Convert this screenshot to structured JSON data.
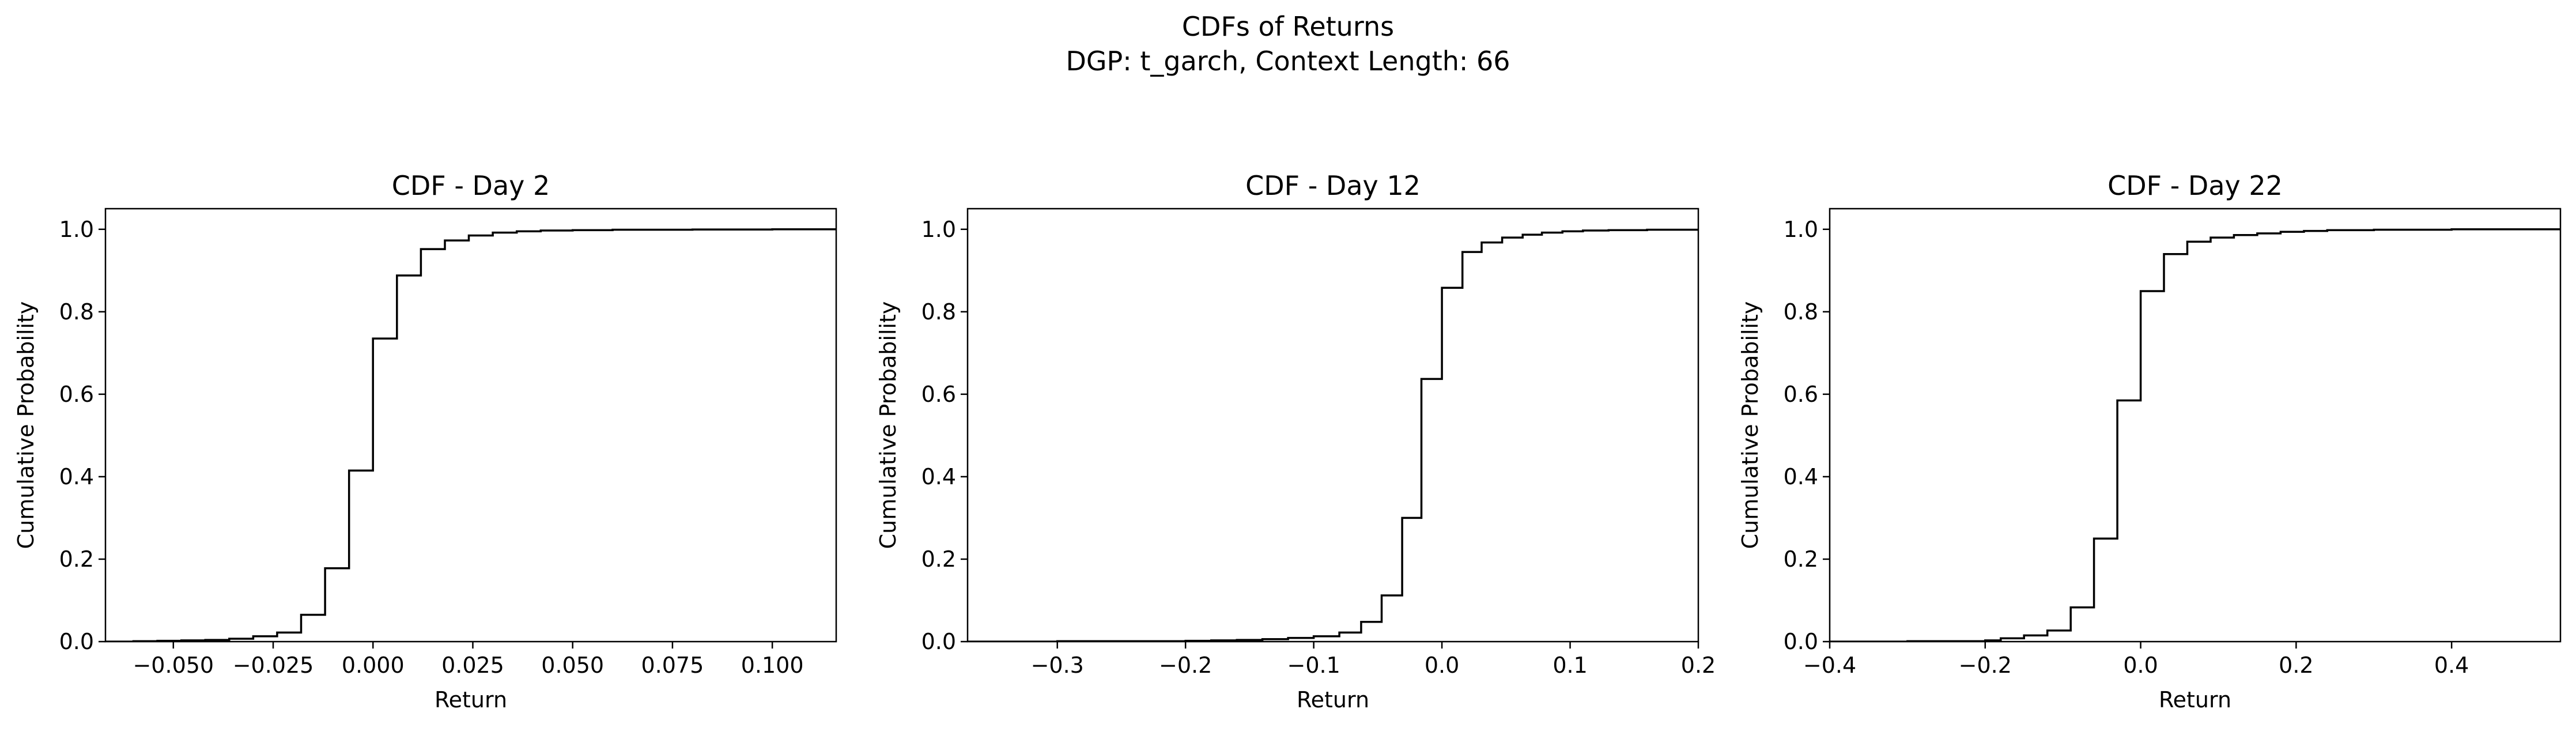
{
  "figure": {
    "title_line1": "CDFs of Returns",
    "title_line2": "DGP: t_garch, Context Length: 66"
  },
  "chart_data": [
    {
      "type": "line",
      "step": true,
      "title": "CDF - Day 2",
      "xlabel": "Return",
      "ylabel": "Cumulative Probability",
      "xlim": [
        -0.067,
        0.116
      ],
      "ylim": [
        0,
        1.05
      ],
      "xticks": [
        -0.05,
        -0.025,
        0.0,
        0.025,
        0.05,
        0.075,
        0.1
      ],
      "xticklabels": [
        "−0.050",
        "−0.025",
        "0.000",
        "0.025",
        "0.050",
        "0.075",
        "0.100"
      ],
      "yticks": [
        0.0,
        0.2,
        0.4,
        0.6,
        0.8,
        1.0
      ],
      "yticklabels": [
        "0.0",
        "0.2",
        "0.4",
        "0.6",
        "0.8",
        "1.0"
      ],
      "grid": false,
      "series": [
        {
          "x": [
            -0.067,
            -0.06,
            -0.054,
            -0.048,
            -0.042,
            -0.036,
            -0.03,
            -0.024,
            -0.018,
            -0.012,
            -0.006,
            0.0,
            0.006,
            0.012,
            0.018,
            0.024,
            0.03,
            0.036,
            0.042,
            0.05,
            0.06,
            0.08,
            0.1,
            0.116
          ],
          "y": [
            0.0,
            0.001,
            0.002,
            0.003,
            0.004,
            0.007,
            0.013,
            0.022,
            0.065,
            0.178,
            0.415,
            0.735,
            0.888,
            0.952,
            0.973,
            0.985,
            0.992,
            0.995,
            0.997,
            0.998,
            0.999,
            0.9995,
            1.0,
            1.0
          ]
        }
      ]
    },
    {
      "type": "line",
      "step": true,
      "title": "CDF - Day 12",
      "xlabel": "Return",
      "ylabel": "Cumulative Probability",
      "xlim": [
        -0.37,
        0.2
      ],
      "ylim": [
        0,
        1.05
      ],
      "xticks": [
        -0.3,
        -0.2,
        -0.1,
        0.0,
        0.1,
        0.2
      ],
      "xticklabels": [
        "−0.3",
        "−0.2",
        "−0.1",
        "0.0",
        "0.1",
        "0.2"
      ],
      "yticks": [
        0.0,
        0.2,
        0.4,
        0.6,
        0.8,
        1.0
      ],
      "yticklabels": [
        "0.0",
        "0.2",
        "0.4",
        "0.6",
        "0.8",
        "1.0"
      ],
      "grid": false,
      "series": [
        {
          "x": [
            -0.37,
            -0.3,
            -0.2,
            -0.18,
            -0.16,
            -0.14,
            -0.12,
            -0.1,
            -0.08,
            -0.063,
            -0.047,
            -0.031,
            -0.016,
            0.0,
            0.016,
            0.031,
            0.047,
            0.063,
            0.078,
            0.094,
            0.11,
            0.13,
            0.16,
            0.2
          ],
          "y": [
            0.0,
            0.001,
            0.002,
            0.003,
            0.004,
            0.006,
            0.009,
            0.013,
            0.022,
            0.048,
            0.112,
            0.3,
            0.637,
            0.858,
            0.945,
            0.968,
            0.98,
            0.987,
            0.992,
            0.995,
            0.997,
            0.998,
            0.999,
            1.0
          ]
        }
      ]
    },
    {
      "type": "line",
      "step": true,
      "title": "CDF - Day 22",
      "xlabel": "Return",
      "ylabel": "Cumulative Probability",
      "xlim": [
        -0.4,
        0.54
      ],
      "ylim": [
        0,
        1.05
      ],
      "xticks": [
        -0.4,
        -0.2,
        0.0,
        0.2,
        0.4
      ],
      "xticklabels": [
        "−0.4",
        "−0.2",
        "0.0",
        "0.2",
        "0.4"
      ],
      "yticks": [
        0.0,
        0.2,
        0.4,
        0.6,
        0.8,
        1.0
      ],
      "yticklabels": [
        "0.0",
        "0.2",
        "0.4",
        "0.6",
        "0.8",
        "1.0"
      ],
      "grid": false,
      "series": [
        {
          "x": [
            -0.4,
            -0.3,
            -0.2,
            -0.18,
            -0.15,
            -0.12,
            -0.09,
            -0.06,
            -0.03,
            0.0,
            0.03,
            0.06,
            0.09,
            0.12,
            0.15,
            0.18,
            0.21,
            0.24,
            0.3,
            0.4,
            0.54
          ],
          "y": [
            0.0,
            0.001,
            0.003,
            0.008,
            0.015,
            0.027,
            0.083,
            0.25,
            0.585,
            0.85,
            0.94,
            0.97,
            0.98,
            0.986,
            0.99,
            0.994,
            0.996,
            0.998,
            0.999,
            1.0,
            1.0
          ]
        }
      ]
    }
  ]
}
